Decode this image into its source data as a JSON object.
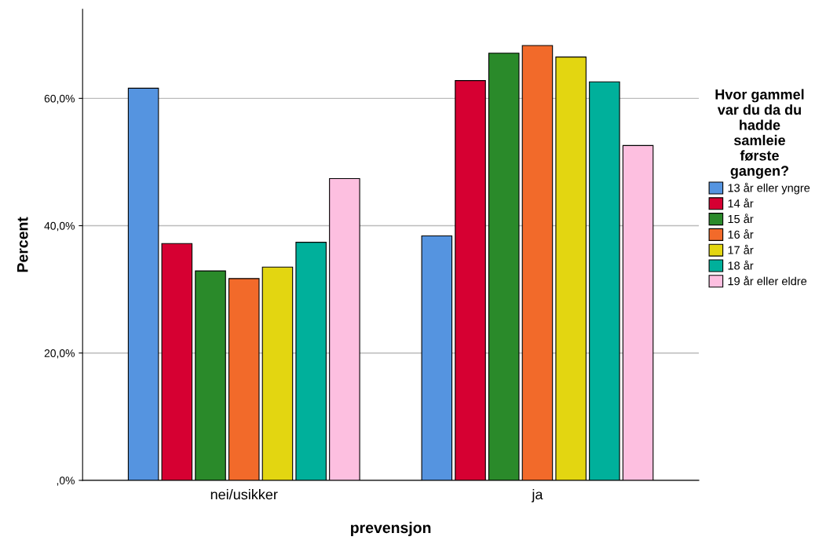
{
  "chart_data": {
    "type": "bar",
    "xlabel": "prevensjon",
    "ylabel": "Percent",
    "legend_title": "Hvor gammel\nvar du da du\nhadde\nsamleie\nførste\ngangen?",
    "categories": [
      "nei/usikker",
      "ja"
    ],
    "series": [
      {
        "name": "13 år eller yngre",
        "color": "#5594e0",
        "values": [
          61.6,
          38.4
        ]
      },
      {
        "name": "14 år",
        "color": "#d60032",
        "values": [
          37.2,
          62.8
        ]
      },
      {
        "name": "15 år",
        "color": "#2a8a2a",
        "values": [
          32.9,
          67.1
        ]
      },
      {
        "name": "16 år",
        "color": "#f26a2a",
        "values": [
          31.7,
          68.3
        ]
      },
      {
        "name": "17 år",
        "color": "#e3d611",
        "values": [
          33.5,
          66.5
        ]
      },
      {
        "name": "18 år",
        "color": "#00b09b",
        "values": [
          37.4,
          62.6
        ]
      },
      {
        "name": "19 år eller eldre",
        "color": "#fdbfe0",
        "values": [
          47.4,
          52.6
        ]
      }
    ],
    "ylim": [
      0,
      74
    ],
    "yticks": [
      {
        "value": 0,
        "label": ",0%"
      },
      {
        "value": 20,
        "label": "20,0%"
      },
      {
        "value": 40,
        "label": "40,0%"
      },
      {
        "value": 60,
        "label": "60,0%"
      }
    ],
    "grid": "y",
    "legend": "right"
  }
}
